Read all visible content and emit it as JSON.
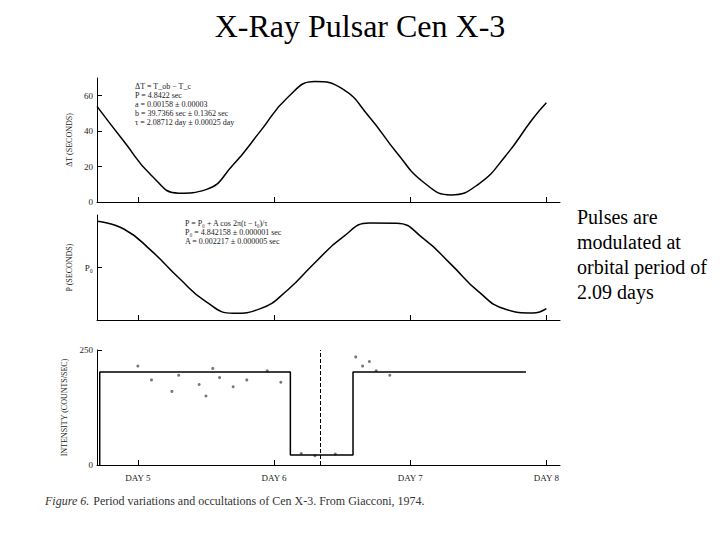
{
  "title": "X-Ray Pulsar Cen X-3",
  "side_text": "Pulses are modulated at orbital period of 2.09 days",
  "caption_label": "Figure 6.",
  "caption": "Period variations and occultations of Cen X-3. From Giacconi, 1974.",
  "chart_data": [
    {
      "type": "line",
      "y_label": "ΔT (SECONDS)",
      "annotations": [
        "ΔT = T_ob − T_c",
        "P = 4.8422 sec",
        "a = 0.00158 ± 0.00003",
        "b = 39.7366 sec ± 0.1362 sec",
        "τ = 2.08712 day ± 0.00025 day"
      ],
      "x": [
        4.7,
        4.9,
        5.1,
        5.3,
        5.5,
        5.7,
        5.9,
        6.1,
        6.3,
        6.5,
        6.7,
        6.9,
        7.1,
        7.3,
        7.5,
        7.7,
        7.9,
        8.0
      ],
      "values": [
        54,
        34,
        15,
        5,
        7,
        21,
        40,
        59,
        68,
        64,
        48,
        28,
        11,
        4,
        10,
        26,
        47,
        56
      ],
      "color": "#000000",
      "line_style": "solid",
      "xlim": [
        4.7,
        8.1
      ],
      "xticks": [
        5,
        6,
        7,
        8
      ],
      "ylim": [
        0,
        70
      ],
      "yticks": [
        0,
        20,
        40,
        60
      ],
      "grid": false,
      "tick_labels": "y"
    },
    {
      "type": "line",
      "y_label": "P (SECONDS)",
      "annotations": [
        "P = P₀ + A cos 2π(t − t₀)/τ",
        "P₀ = 4.842158 ± 0.000001 sec",
        "A = 0.002217 ± 0.000005 sec"
      ],
      "x": [
        4.7,
        4.9,
        5.1,
        5.3,
        5.5,
        5.7,
        5.9,
        6.1,
        6.3,
        6.5,
        6.7,
        6.9,
        7.1,
        7.3,
        7.5,
        7.7,
        7.9,
        8.0
      ],
      "values": [
        0.0022,
        0.00182,
        0.00079,
        -0.00049,
        -0.00163,
        -0.00218,
        -0.00196,
        -0.00107,
        0.00023,
        0.00142,
        0.00212,
        0.00211,
        0.00136,
        0.00015,
        -0.00114,
        -0.00199,
        -0.00217,
        -0.00196
      ],
      "color": "#000000",
      "line_style": "solid",
      "xlim": [
        4.7,
        8.1
      ],
      "xticks": [
        5,
        6,
        7,
        8
      ],
      "ylim": [
        -0.0025,
        0.0025
      ],
      "yticks": [
        {
          "value": 0,
          "label": "P₀"
        }
      ],
      "grid": false,
      "tick_labels": "y"
    },
    {
      "type": "line",
      "y_label": "INTENSITY (COUNTS/SEC)",
      "series": [
        {
          "type": "line",
          "color": "#000000",
          "line_style": "solid",
          "x": [
            4.72,
            4.72,
            6.12,
            6.12,
            6.58,
            6.58,
            7.85
          ],
          "values": [
            0,
            202,
            202,
            22,
            22,
            202,
            202
          ]
        },
        {
          "type": "scatter",
          "color": "#555555",
          "marker": "circle",
          "x": [
            5.0,
            5.1,
            5.25,
            5.3,
            5.45,
            5.5,
            5.55,
            5.6,
            5.7,
            5.8,
            5.95,
            6.05,
            6.2,
            6.3,
            6.45,
            6.6,
            6.65,
            6.7,
            6.75,
            6.85
          ],
          "values": [
            215,
            185,
            160,
            195,
            175,
            150,
            210,
            190,
            170,
            185,
            205,
            180,
            25,
            20,
            24,
            235,
            215,
            225,
            205,
            195
          ]
        }
      ],
      "vlines": [
        6.34
      ],
      "xlim": [
        4.7,
        8.1
      ],
      "xticks": [
        {
          "value": 5,
          "label": "DAY 5"
        },
        {
          "value": 6,
          "label": "DAY 6"
        },
        {
          "value": 7,
          "label": "DAY 7"
        },
        {
          "value": 8,
          "label": "DAY 8"
        }
      ],
      "ylim": [
        0,
        250
      ],
      "yticks": [
        0,
        250
      ],
      "grid": false
    }
  ]
}
